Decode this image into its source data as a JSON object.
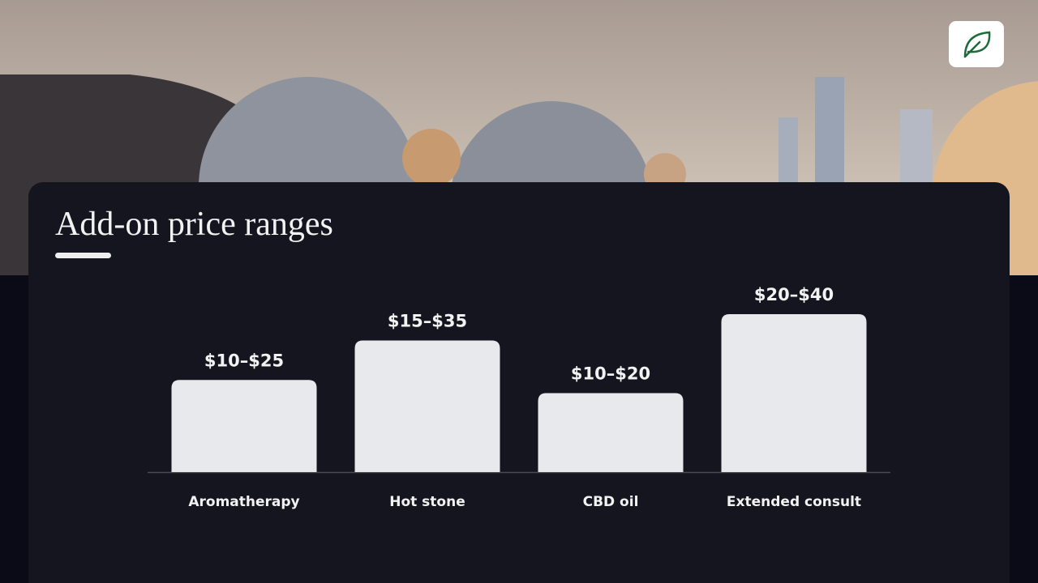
{
  "chart_data": {
    "type": "bar",
    "title": "Add-on price ranges",
    "categories": [
      "Aromatherapy",
      "Hot stone",
      "CBD oil",
      "Extended consult"
    ],
    "low": [
      10,
      15,
      10,
      20
    ],
    "high": [
      25,
      35,
      20,
      40
    ],
    "value_labels": [
      "$10–$25",
      "$15–$35",
      "$10–$20",
      "$20–$40"
    ],
    "color": "#e8e9ed"
  }
}
